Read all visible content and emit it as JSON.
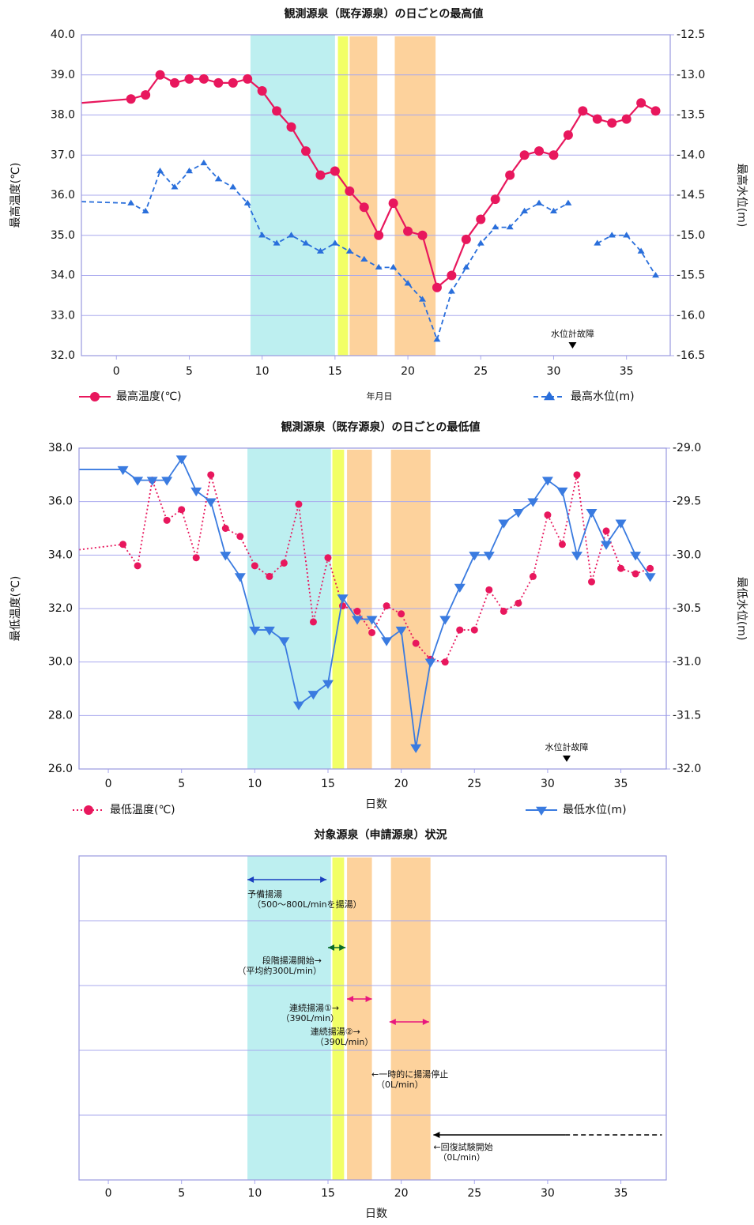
{
  "chart_data": [
    {
      "type": "line",
      "title": "観測源泉（既存源泉）の日ごとの最高値",
      "x_label": "年月日",
      "y_label": "最高温度(℃)",
      "y2_label": "最高水位(m)",
      "xlim": [
        -2.4,
        38
      ],
      "xticks": [
        0,
        5,
        10,
        15,
        20,
        25,
        30,
        35
      ],
      "ylim": [
        32,
        40
      ],
      "yticks": [
        {
          "value": 32,
          "label": "32.0"
        },
        {
          "value": 33,
          "label": "33.0"
        },
        {
          "value": 34,
          "label": "34.0"
        },
        {
          "value": 35,
          "label": "35.0"
        },
        {
          "value": 36,
          "label": "36.0"
        },
        {
          "value": 37,
          "label": "37.0"
        },
        {
          "value": 38,
          "label": "38.0"
        },
        {
          "value": 39,
          "label": "39.0"
        },
        {
          "value": 40,
          "label": "40.0"
        }
      ],
      "y2lim": [
        -16.5,
        -12.5
      ],
      "y2ticks": [
        -16.5,
        {
          "value": -16,
          "label": "-16.0"
        },
        -15.5,
        {
          "value": -15,
          "label": "-15.0"
        },
        -14.5,
        {
          "value": -14,
          "label": "-14.0"
        },
        -13.5,
        {
          "value": -13,
          "label": "-13.0"
        },
        -12.5
      ],
      "grid": true,
      "bands": [
        {
          "x": [
            9.2,
            15.0
          ],
          "color": "#bdeff0"
        },
        {
          "x": [
            15.2,
            15.9
          ],
          "color": "#f2ff66"
        },
        {
          "x": [
            16.0,
            17.9
          ],
          "color": "#fdd29c"
        },
        {
          "x": [
            19.1,
            21.9
          ],
          "color": "#fdd29c"
        }
      ],
      "x": [
        -2.4,
        1,
        2,
        3,
        4,
        5,
        6,
        7,
        8,
        9,
        10,
        11,
        12,
        13,
        14,
        15,
        16,
        17,
        18,
        19,
        20,
        21,
        22,
        23,
        24,
        25,
        26,
        27,
        28,
        29,
        30,
        31,
        32,
        33,
        34,
        35,
        36,
        37
      ],
      "series": [
        {
          "name": "最高温度(℃)",
          "color": "#e8175d",
          "dash": "solid",
          "marker": "circle",
          "values": [
            38.3,
            38.4,
            38.5,
            39.0,
            38.8,
            38.9,
            38.9,
            38.8,
            38.8,
            38.9,
            38.6,
            38.1,
            37.7,
            37.1,
            36.5,
            36.6,
            36.1,
            35.7,
            35.0,
            35.8,
            35.1,
            35.0,
            33.7,
            34.0,
            34.9,
            35.4,
            35.9,
            36.5,
            37.0,
            37.1,
            37.0,
            37.5,
            38.1,
            37.9,
            37.8,
            37.9,
            38.3,
            38.1
          ]
        },
        {
          "name": "最高水位(m)",
          "color": "#2a6fdb",
          "dash": "dashed",
          "marker": "triangle-up",
          "axis": "y2",
          "values": [
            -14.58,
            -14.6,
            -14.7,
            -14.2,
            -14.4,
            -14.2,
            -14.1,
            -14.3,
            -14.4,
            -14.6,
            -15.0,
            -15.1,
            -15.0,
            -15.1,
            -15.2,
            -15.1,
            -15.2,
            -15.3,
            -15.4,
            -15.4,
            -15.6,
            -15.8,
            -16.3,
            -15.7,
            -15.4,
            -15.1,
            -14.9,
            -14.9,
            -14.7,
            -14.6,
            -14.7,
            -14.6,
            null,
            -15.1,
            -15.0,
            -15.0,
            -15.2,
            -15.5
          ]
        }
      ],
      "annotation": {
        "text": "水位計故障",
        "x": 31.3
      }
    },
    {
      "type": "line",
      "title": "観測源泉（既存源泉）の日ごとの最低値",
      "x_label": "日数",
      "y_label": "最低温度(℃)",
      "y2_label": "最低水位(m)",
      "xlim": [
        -2,
        38.1
      ],
      "xticks": [
        0,
        5,
        10,
        15,
        20,
        25,
        30,
        35
      ],
      "ylim": [
        26,
        38
      ],
      "yticks": [
        {
          "value": 26,
          "label": "26.0"
        },
        {
          "value": 28,
          "label": "28.0"
        },
        {
          "value": 30,
          "label": "30.0"
        },
        {
          "value": 32,
          "label": "32.0"
        },
        {
          "value": 34,
          "label": "34.0"
        },
        {
          "value": 36,
          "label": "36.0"
        },
        {
          "value": 38,
          "label": "38.0"
        }
      ],
      "y2lim": [
        -32,
        -29
      ],
      "y2ticks": [
        {
          "value": -32,
          "label": "-32.0"
        },
        -31.5,
        {
          "value": -31,
          "label": "-31.0"
        },
        -30.5,
        {
          "value": -30,
          "label": "-30.0"
        },
        -29.5,
        {
          "value": -29,
          "label": "-29.0"
        }
      ],
      "grid": true,
      "bands": [
        {
          "x": [
            9.5,
            15.2
          ],
          "color": "#bdeff0"
        },
        {
          "x": [
            15.3,
            16.1
          ],
          "color": "#f2ff66"
        },
        {
          "x": [
            16.3,
            18.0
          ],
          "color": "#fdd29c"
        },
        {
          "x": [
            19.3,
            22.0
          ],
          "color": "#fdd29c"
        }
      ],
      "x": [
        -2,
        1,
        2,
        3,
        4,
        5,
        6,
        7,
        8,
        9,
        10,
        11,
        12,
        13,
        14,
        15,
        16,
        17,
        18,
        19,
        20,
        21,
        22,
        23,
        24,
        25,
        26,
        27,
        28,
        29,
        30,
        31,
        32,
        33,
        34,
        35,
        36,
        37
      ],
      "series": [
        {
          "name": "最低温度(℃)",
          "color": "#e8175d",
          "dash": "dotted",
          "marker": "circle",
          "values": [
            34.2,
            34.4,
            33.6,
            36.8,
            35.3,
            35.7,
            33.9,
            37.0,
            35.0,
            34.7,
            33.6,
            33.2,
            33.7,
            35.9,
            31.5,
            33.9,
            32.1,
            31.9,
            31.1,
            32.1,
            31.8,
            30.7,
            30.1,
            30.0,
            31.2,
            31.2,
            32.7,
            31.9,
            32.2,
            33.2,
            35.5,
            34.4,
            37.0,
            33.0,
            34.9,
            33.5,
            33.3,
            33.5
          ]
        },
        {
          "name": "最低水位(m)",
          "color": "#3a7be0",
          "dash": "solid",
          "marker": "triangle-down",
          "axis": "y2",
          "values": [
            -29.2,
            -29.2,
            -29.3,
            -29.3,
            -29.3,
            -29.1,
            -29.4,
            -29.5,
            -30.0,
            -30.2,
            -30.7,
            -30.7,
            -30.8,
            -31.4,
            -31.3,
            -31.2,
            -30.4,
            -30.6,
            -30.6,
            -30.8,
            -30.7,
            -31.8,
            -31.0,
            -30.6,
            -30.3,
            -30.0,
            -30.0,
            -29.7,
            -29.6,
            -29.5,
            -29.3,
            -29.4,
            -30.0,
            -29.6,
            -29.9,
            -29.7,
            -30.0,
            -30.2
          ]
        }
      ],
      "annotation": {
        "text": "水位計故障",
        "x": 31.3
      }
    },
    {
      "type": "schedule",
      "title": "対象源泉（申請源泉）状況",
      "x_label": "日数",
      "xlim": [
        -2,
        38.1
      ],
      "xticks": [
        0,
        5,
        10,
        15,
        20,
        25,
        30,
        35
      ],
      "bands": [
        {
          "x": [
            9.5,
            15.2
          ],
          "color": "#bdeff0"
        },
        {
          "x": [
            15.3,
            16.1
          ],
          "color": "#f2ff66"
        },
        {
          "x": [
            16.3,
            18.0
          ],
          "color": "#fdd29c"
        },
        {
          "x": [
            19.3,
            22.0
          ],
          "color": "#fdd29c"
        }
      ],
      "arrows": [
        {
          "x": [
            9.5,
            14.9
          ],
          "color": "#1a3fbf",
          "heads": "both",
          "lines": [
            "予備揚湯",
            "（500～800L/minを揚湯）"
          ]
        },
        {
          "x": [
            15.0,
            16.2
          ],
          "color": "#0a6a2a",
          "heads": "both",
          "lines": [
            "段階揚湯開始→",
            "（平均約300L/min）"
          ]
        },
        {
          "x": [
            16.3,
            18.0
          ],
          "color": "#e8177d",
          "heads": "both",
          "lines": [
            "連続揚湯①→",
            "（390L/min）"
          ]
        },
        {
          "x": [
            19.2,
            21.9
          ],
          "color": "#e8177d",
          "heads": "both",
          "lines": [
            "連続揚湯②→",
            "（390L/min）"
          ]
        },
        {
          "lines": [
            "←一時的に揚湯停止",
            "（0L/min）"
          ]
        },
        {
          "x": [
            22.2,
            31.2
          ],
          "dashed": [
            31.2,
            37.8
          ],
          "color": "#000000",
          "heads": "start",
          "lines": [
            "←回復試験開始",
            "（0L/min）"
          ]
        }
      ]
    }
  ]
}
